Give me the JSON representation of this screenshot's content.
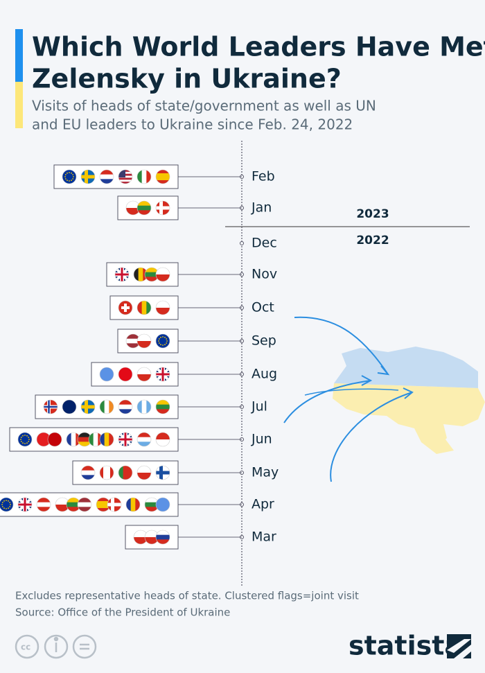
{
  "header": {
    "title_lines": [
      "Which World Leaders Have Met",
      "Zelensky in Ukraine?"
    ],
    "subtitle_lines": [
      "Visits of heads of state/government as well as UN",
      "and EU leaders to Ukraine since Feb. 24, 2022"
    ]
  },
  "timeline": {
    "years": [
      "2023",
      "2022"
    ],
    "months": [
      "Feb",
      "Jan",
      "Dec",
      "Nov",
      "Oct",
      "Sep",
      "Aug",
      "Jul",
      "Jun",
      "May",
      "Apr",
      "Mar"
    ]
  },
  "footer": {
    "note": "Excludes representative heads of state. Clustered flags=joint visit",
    "source": "Source: Office of the President of Ukraine",
    "brand": "statista"
  }
}
